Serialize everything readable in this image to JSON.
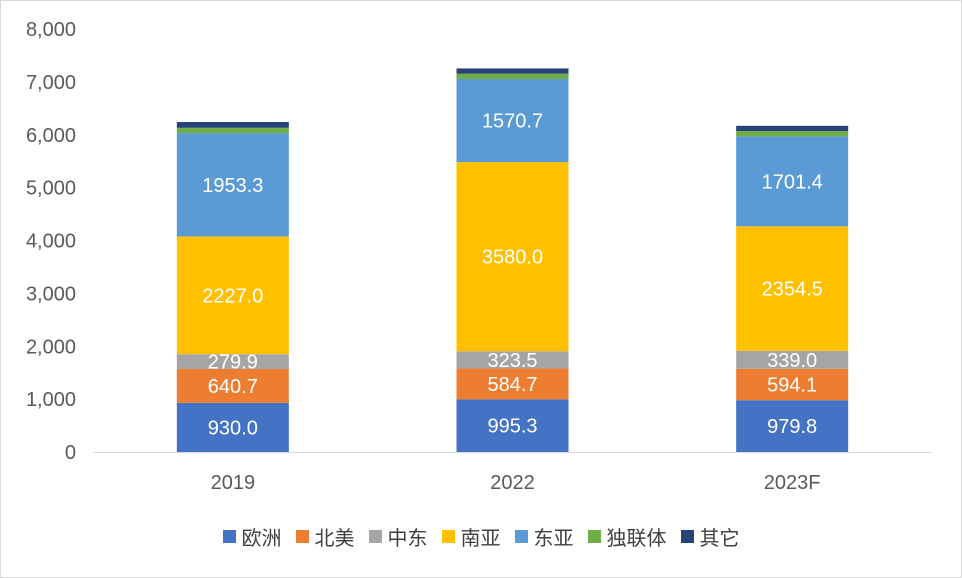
{
  "chart_data": {
    "type": "bar",
    "stacked": true,
    "categories": [
      "2019",
      "2022",
      "2023F"
    ],
    "ylim": [
      0,
      8000
    ],
    "yticks": [
      "0",
      "1,000",
      "2,000",
      "3,000",
      "4,000",
      "5,000",
      "6,000",
      "7,000",
      "8,000"
    ],
    "ytick_values": [
      0,
      1000,
      2000,
      3000,
      4000,
      5000,
      6000,
      7000,
      8000
    ],
    "grid": false,
    "legend_position": "bottom",
    "series": [
      {
        "name": "欧洲",
        "color": "#4472c4",
        "values": [
          930.0,
          995.3,
          979.8
        ],
        "labels": [
          "930.0",
          "995.3",
          "979.8"
        ]
      },
      {
        "name": "北美",
        "color": "#ed7d31",
        "values": [
          640.7,
          584.7,
          594.1
        ],
        "labels": [
          "640.7",
          "584.7",
          "594.1"
        ]
      },
      {
        "name": "中东",
        "color": "#a5a5a5",
        "values": [
          279.9,
          323.5,
          339.0
        ],
        "labels": [
          "279.9",
          "323.5",
          "339.0"
        ]
      },
      {
        "name": "南亚",
        "color": "#ffc000",
        "values": [
          2227.0,
          3580.0,
          2354.5
        ],
        "labels": [
          "2227.0",
          "3580.0",
          "2354.5"
        ]
      },
      {
        "name": "东亚",
        "color": "#5b9bd5",
        "values": [
          1953.3,
          1570.7,
          1701.4
        ],
        "labels": [
          "1953.3",
          "1570.7",
          "1701.4"
        ]
      },
      {
        "name": "独联体",
        "color": "#70ad47",
        "values": [
          100,
          100,
          100
        ],
        "labels": [
          "",
          "",
          ""
        ]
      },
      {
        "name": "其它",
        "color": "#264478",
        "values": [
          110,
          100,
          100
        ],
        "labels": [
          "",
          "",
          ""
        ]
      }
    ]
  }
}
